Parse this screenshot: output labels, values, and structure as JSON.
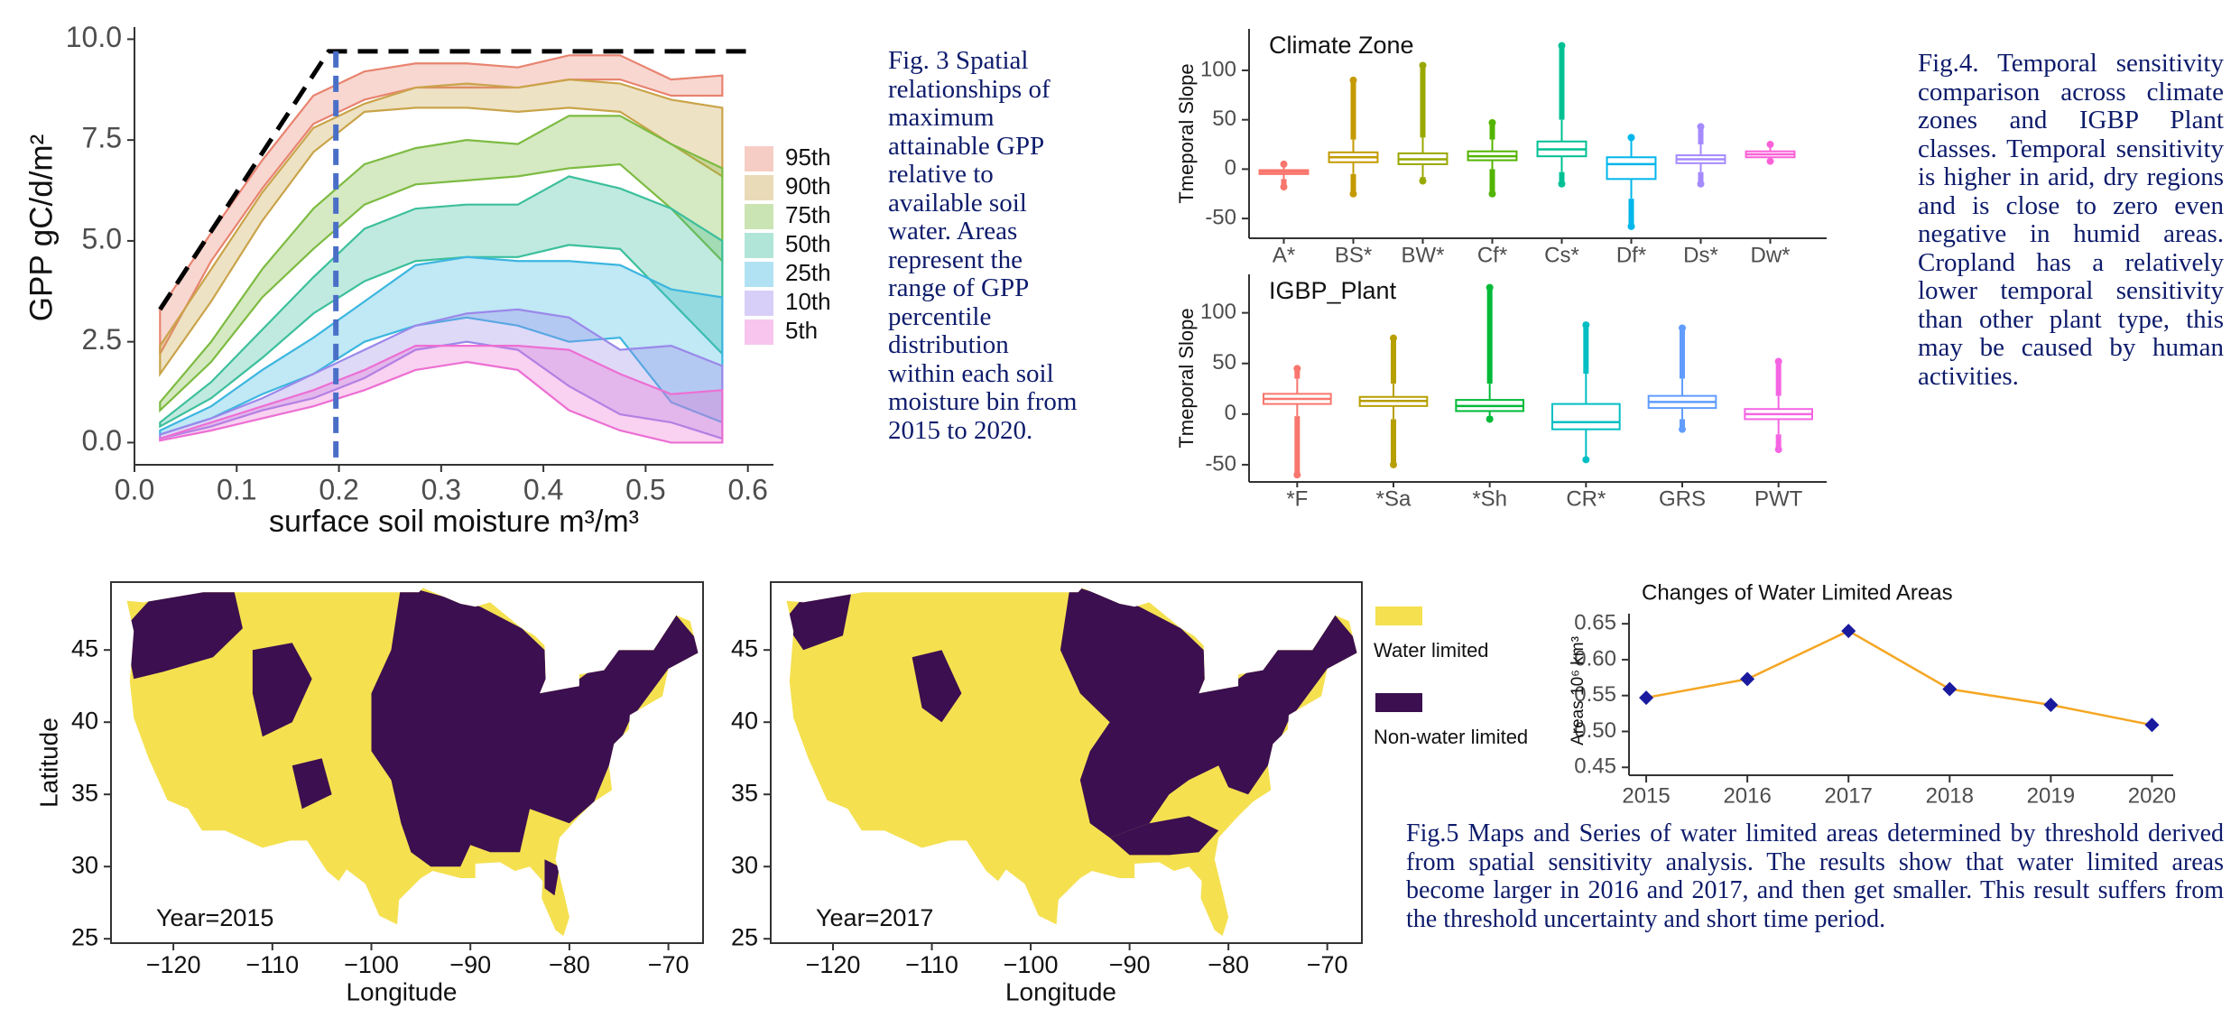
{
  "chart_data": [
    {
      "type": "area",
      "xlabel": "surface soil moisture  m³/m³",
      "ylabel": "GPP gC/d/m²",
      "x": [
        0.025,
        0.075,
        0.125,
        0.175,
        0.225,
        0.275,
        0.325,
        0.375,
        0.425,
        0.475,
        0.525,
        0.575
      ],
      "series": [
        {
          "name": "95th",
          "color": "#e8836f",
          "values": [
            3.3,
            5.2,
            7.0,
            8.6,
            9.2,
            9.4,
            9.4,
            9.3,
            9.6,
            9.6,
            9.0,
            9.1
          ],
          "lower": [
            2.2,
            4.5,
            6.3,
            7.9,
            8.5,
            8.8,
            8.8,
            8.8,
            9.0,
            9.0,
            8.6,
            8.6
          ]
        },
        {
          "name": "90th",
          "color": "#c9a44a",
          "values": [
            2.4,
            4.3,
            6.2,
            7.8,
            8.4,
            8.8,
            8.9,
            8.8,
            9.0,
            8.9,
            8.5,
            8.3
          ],
          "lower": [
            1.7,
            3.5,
            5.5,
            7.2,
            8.2,
            8.3,
            8.3,
            8.2,
            8.3,
            8.2,
            7.4,
            6.6
          ]
        },
        {
          "name": "75th",
          "color": "#7dbb42",
          "values": [
            1.0,
            2.5,
            4.3,
            5.8,
            6.9,
            7.3,
            7.5,
            7.4,
            8.1,
            8.1,
            7.4,
            6.8
          ],
          "lower": [
            0.8,
            2.0,
            3.6,
            4.8,
            5.9,
            6.4,
            6.5,
            6.6,
            6.8,
            6.9,
            5.8,
            4.5
          ]
        },
        {
          "name": "50th",
          "color": "#3cbf9c",
          "values": [
            0.5,
            1.5,
            2.8,
            4.1,
            5.3,
            5.8,
            5.9,
            5.9,
            6.6,
            6.3,
            5.8,
            5.0
          ],
          "lower": [
            0.4,
            1.1,
            2.1,
            3.2,
            4.0,
            4.5,
            4.6,
            4.6,
            4.9,
            4.8,
            3.5,
            2.2
          ]
        },
        {
          "name": "25th",
          "color": "#3cb6e0",
          "values": [
            0.3,
            0.9,
            1.8,
            2.6,
            3.5,
            4.4,
            4.6,
            4.5,
            4.5,
            4.4,
            3.8,
            3.6
          ],
          "lower": [
            0.2,
            0.6,
            1.2,
            1.7,
            2.5,
            2.9,
            3.1,
            2.9,
            2.5,
            2.6,
            1.0,
            0.5
          ]
        },
        {
          "name": "10th",
          "color": "#9a88ea",
          "values": [
            0.2,
            0.6,
            1.1,
            1.7,
            2.3,
            2.9,
            3.2,
            3.3,
            3.1,
            2.3,
            2.4,
            1.9
          ],
          "lower": [
            0.1,
            0.4,
            0.8,
            1.1,
            1.6,
            2.3,
            2.5,
            2.3,
            1.4,
            0.7,
            0.5,
            0.1
          ]
        },
        {
          "name": "5th",
          "color": "#ec6fd3",
          "values": [
            0.1,
            0.5,
            0.9,
            1.3,
            1.8,
            2.4,
            2.4,
            2.4,
            2.3,
            1.7,
            1.2,
            1.3
          ],
          "lower": [
            0.05,
            0.3,
            0.6,
            0.9,
            1.3,
            1.8,
            2.0,
            1.8,
            0.8,
            0.3,
            0.0,
            0.0
          ]
        }
      ],
      "envelope": {
        "x": [
          0.025,
          0.19,
          0.6
        ],
        "values": [
          3.3,
          9.7,
          9.7
        ],
        "color": "#000000"
      },
      "threshold": {
        "x": 0.197,
        "color": "#4a6fc7"
      },
      "xlim": [
        0,
        0.625
      ],
      "xticks": [
        {
          "value": 0,
          "label": "0.0"
        },
        0.1,
        0.2,
        0.3,
        0.4,
        0.5,
        0.6
      ],
      "ylim": [
        -0.55,
        10.3
      ],
      "yticks": [
        {
          "value": 0,
          "label": "0.0"
        },
        2.5,
        {
          "value": 5,
          "label": "5.0"
        },
        7.5,
        {
          "value": 10,
          "label": "10.0"
        }
      ]
    },
    {
      "type": "box",
      "title": "Climate Zone",
      "ylabel": "Tmeporal Slope",
      "categories": [
        "A*",
        "BS*",
        "BW*",
        "Cf*",
        "Cs*",
        "Df*",
        "Ds*",
        "Dw*"
      ],
      "colors": [
        "#f8766d",
        "#c49a00",
        "#99a800",
        "#53b400",
        "#00c094",
        "#00b6eb",
        "#a58aff",
        "#fb61d7"
      ],
      "min": [
        -18,
        -25,
        -12,
        -25,
        -15,
        -58,
        -15,
        8
      ],
      "whisker_low": [
        -10,
        -5,
        -8,
        0,
        -3,
        -30,
        -3,
        8
      ],
      "q1": [
        -5,
        7,
        5,
        9,
        13,
        -10,
        6,
        12
      ],
      "median": [
        -3,
        12,
        10,
        13,
        20,
        5,
        10,
        15
      ],
      "q3": [
        -1,
        17,
        16,
        18,
        28,
        12,
        14,
        18
      ],
      "whisker_high": [
        3,
        30,
        32,
        30,
        50,
        30,
        25,
        25
      ],
      "max": [
        5,
        90,
        105,
        47,
        125,
        32,
        43,
        25
      ],
      "ylim": [
        -70,
        142
      ],
      "yticks": [
        -50,
        0,
        50,
        100
      ]
    },
    {
      "type": "box",
      "title": "IGBP_Plant",
      "ylabel": "Tmeporal Slope",
      "categories": [
        "*F",
        "*Sa",
        "*Sh",
        "CR*",
        "GRS",
        "PWT"
      ],
      "colors": [
        "#f8766d",
        "#b79f00",
        "#00ba38",
        "#00bfc4",
        "#619cff",
        "#f564e3"
      ],
      "min": [
        -60,
        -50,
        -5,
        -45,
        -15,
        -35
      ],
      "whisker_low": [
        -2,
        -5,
        -2,
        -45,
        -5,
        -20
      ],
      "q1": [
        10,
        8,
        3,
        -15,
        6,
        -5
      ],
      "median": [
        15,
        13,
        8,
        -8,
        12,
        0
      ],
      "q3": [
        20,
        17,
        14,
        10,
        18,
        5
      ],
      "whisker_high": [
        35,
        30,
        30,
        40,
        35,
        18
      ],
      "max": [
        45,
        75,
        125,
        88,
        85,
        52
      ],
      "ylim": [
        -67,
        138
      ],
      "yticks": [
        -50,
        0,
        50,
        100
      ]
    },
    {
      "type": "line",
      "title": "Changes of Water Limited Areas",
      "ylabel": "Areas 10⁶ km³",
      "x": [
        2015,
        2016,
        2017,
        2018,
        2019,
        2020
      ],
      "values": [
        0.547,
        0.573,
        0.64,
        0.559,
        0.537,
        0.509
      ],
      "color": "#f5a623",
      "marker_color": "#1a1a9e",
      "xlim": [
        2014.83,
        2020.21
      ],
      "xticks": [
        2015,
        2016,
        2017,
        2018,
        2019,
        2020
      ],
      "ylim": [
        0.439,
        0.664
      ],
      "yticks": [
        0.45,
        {
          "value": 0.5,
          "label": "0.50"
        },
        0.55,
        {
          "value": 0.6,
          "label": "0.60"
        },
        0.65
      ]
    },
    {
      "type": "map",
      "label": "Year=2015",
      "xlabel": "Longitude",
      "ylabel": "Latitude",
      "colors": {
        "water": "#f5e050",
        "non_water": "#3b0f50"
      },
      "legend": [
        {
          "name": "Water limited",
          "color": "#f5e050"
        },
        {
          "name": "Non-water limited",
          "color": "#3b0f50"
        }
      ],
      "xlim": [
        -126.3,
        -66.5
      ],
      "xticks": [
        {
          "value": -120,
          "label": "−120"
        },
        {
          "value": -110,
          "label": "−110"
        },
        {
          "value": -100,
          "label": "−100"
        },
        {
          "value": -90,
          "label": "−90"
        },
        {
          "value": -80,
          "label": "−80"
        },
        {
          "value": -70,
          "label": "−70"
        }
      ],
      "ylim": [
        24.7,
        49.7
      ],
      "yticks": [
        25,
        30,
        35,
        40,
        45
      ]
    },
    {
      "type": "map",
      "label": "Year=2017",
      "xlabel": "Longitude",
      "colors": {
        "water": "#f5e050",
        "non_water": "#3b0f50"
      },
      "xlim": [
        -126.3,
        -66.5
      ],
      "xticks": [
        {
          "value": -120,
          "label": "−120"
        },
        {
          "value": -110,
          "label": "−110"
        },
        {
          "value": -100,
          "label": "−100"
        },
        {
          "value": -90,
          "label": "−90"
        },
        {
          "value": -80,
          "label": "−80"
        },
        {
          "value": -70,
          "label": "−70"
        }
      ],
      "ylim": [
        24.7,
        49.7
      ],
      "yticks": [
        25,
        30,
        35,
        40,
        45
      ]
    }
  ],
  "captions": {
    "fig3": "Fig. 3  Spatial relationships of maximum attainable GPP relative to available soil water. Areas represent the range of GPP percentile distribution within each soil moisture bin from 2015 to 2020.",
    "fig4": "Fig.4. Temporal sensitivity comparison across climate zones and IGBP Plant classes. Temporal sensitivity is higher in arid, dry regions and is close to zero even negative in humid areas. Cropland has a relatively lower temporal sensitivity than other plant type, this may be caused by human activities.",
    "fig5": "Fig.5 Maps and Series of water limited areas determined by threshold derived from spatial sensitivity analysis. The results show that water limited areas become larger in 2016 and 2017, and then get smaller. This result suffers from the threshold uncertainty and short time period."
  }
}
